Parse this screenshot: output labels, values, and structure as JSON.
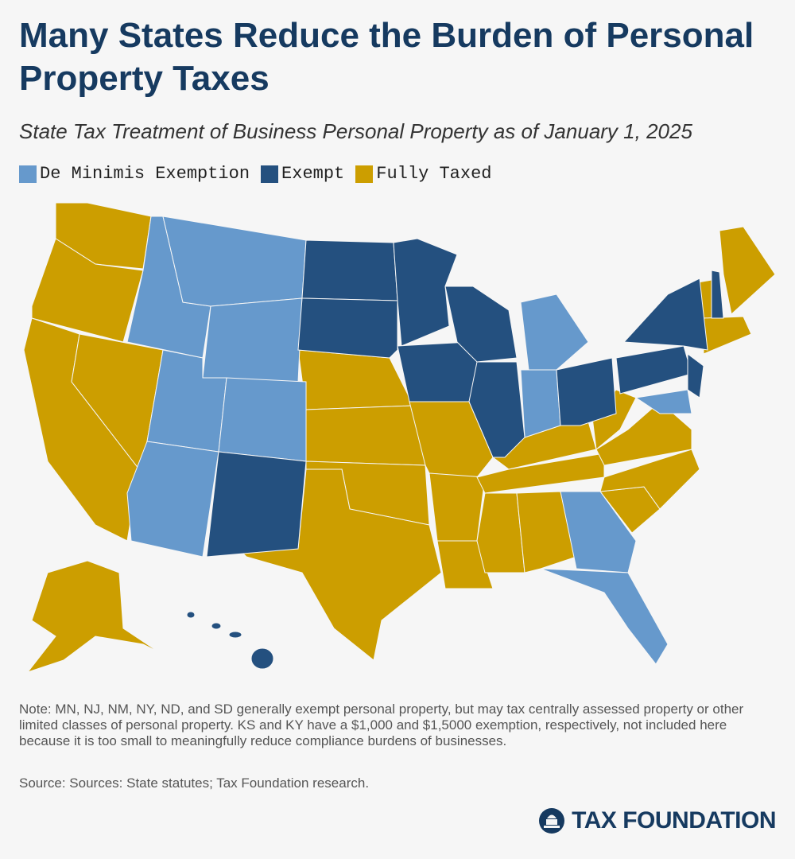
{
  "title": "Many States Reduce the Burden of Personal Property Taxes",
  "subtitle": "State Tax Treatment of Business Personal Property as of January 1, 2025",
  "legend": [
    {
      "label": "De Minimis Exemption",
      "color": "#6699cc"
    },
    {
      "label": "Exempt",
      "color": "#24507f"
    },
    {
      "label": "Fully Taxed",
      "color": "#cc9e00"
    }
  ],
  "note": "Note: MN, NJ, NM, NY, ND, and SD generally exempt personal property, but may tax centrally assessed property or other limited classes of personal property. KS and KY have a $1,000 and $1,5000 exemption, respectively, not included here because it is too small to meaningfully reduce compliance burdens of businesses.",
  "source": "Source: Sources: State statutes; Tax Foundation research.",
  "logo": "TAX FOUNDATION"
}
